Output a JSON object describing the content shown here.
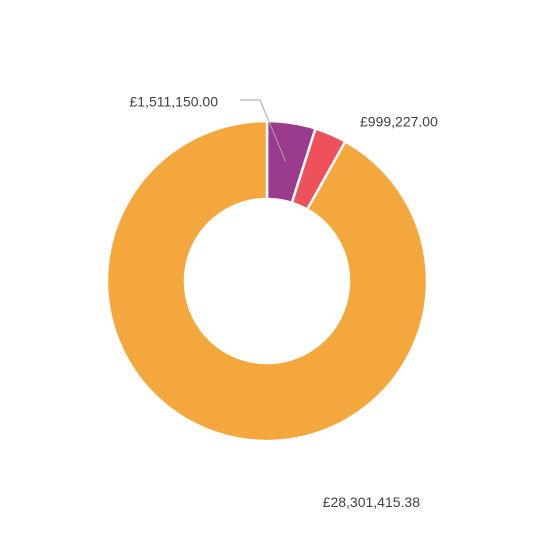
{
  "chart_data": {
    "type": "donut",
    "values": [
      1511150.0,
      999227.0,
      28301415.38
    ],
    "value_labels": [
      "£1,511,150.00",
      "£999,227.00",
      "£28,301,415.38"
    ],
    "colors": [
      "#9b3b8d",
      "#ef515b",
      "#f4a73c"
    ]
  }
}
